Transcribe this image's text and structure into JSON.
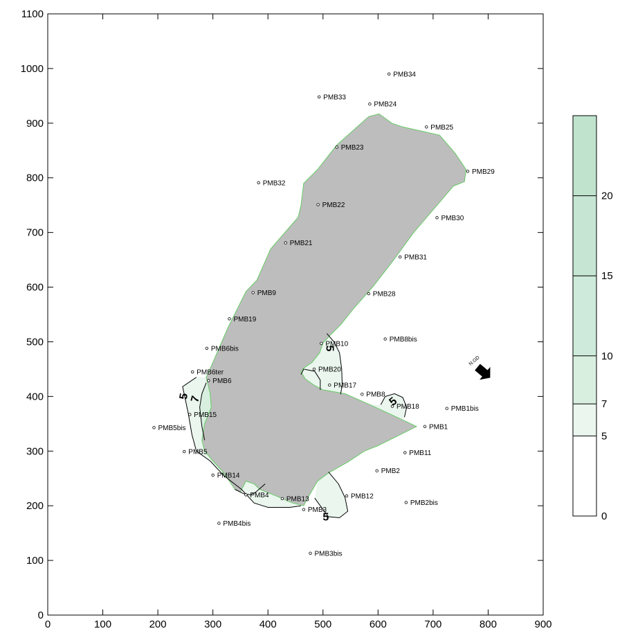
{
  "chart_data": {
    "type": "contour",
    "title": "",
    "xlabel": "",
    "ylabel": "",
    "xlim": [
      0,
      900
    ],
    "ylim": [
      0,
      1100
    ],
    "x_ticks": [
      0,
      100,
      200,
      300,
      400,
      500,
      600,
      700,
      800,
      900
    ],
    "y_ticks": [
      0,
      100,
      200,
      300,
      400,
      500,
      600,
      700,
      800,
      900,
      1000,
      1100
    ],
    "grid": false,
    "north_arrow_label": "N.GD",
    "colors": {
      "pit_fill": "#bdbdbd",
      "pit_edge": "#66cc66",
      "contour_line": "#000000",
      "band_5_7": "#eaf6ee",
      "band_7_10": "#d8efe0",
      "band_10_15": "#cdeadb",
      "band_15_20": "#c6e6d3",
      "band_20_plus": "#bfe3cd"
    },
    "pit_polygon": [
      [
        293,
        446
      ],
      [
        327,
        525
      ],
      [
        360,
        592
      ],
      [
        380,
        613
      ],
      [
        405,
        670
      ],
      [
        455,
        728
      ],
      [
        460,
        750
      ],
      [
        465,
        790
      ],
      [
        490,
        815
      ],
      [
        525,
        860
      ],
      [
        583,
        912
      ],
      [
        602,
        917
      ],
      [
        625,
        900
      ],
      [
        645,
        893
      ],
      [
        690,
        883
      ],
      [
        712,
        878
      ],
      [
        740,
        845
      ],
      [
        760,
        815
      ],
      [
        757,
        793
      ],
      [
        737,
        785
      ],
      [
        665,
        700
      ],
      [
        625,
        645
      ],
      [
        590,
        600
      ],
      [
        555,
        560
      ],
      [
        533,
        532
      ],
      [
        513,
        512
      ],
      [
        500,
        498
      ],
      [
        494,
        480
      ],
      [
        480,
        462
      ],
      [
        465,
        452
      ],
      [
        460,
        445
      ],
      [
        468,
        432
      ],
      [
        485,
        420
      ],
      [
        500,
        412
      ],
      [
        540,
        405
      ],
      [
        585,
        385
      ],
      [
        645,
        357
      ],
      [
        670,
        345
      ],
      [
        600,
        310
      ],
      [
        575,
        300
      ],
      [
        545,
        280
      ],
      [
        510,
        260
      ],
      [
        490,
        245
      ],
      [
        470,
        210
      ],
      [
        465,
        200
      ],
      [
        445,
        205
      ],
      [
        410,
        220
      ],
      [
        385,
        230
      ],
      [
        375,
        240
      ],
      [
        360,
        245
      ],
      [
        350,
        225
      ],
      [
        340,
        230
      ],
      [
        320,
        260
      ],
      [
        300,
        282
      ],
      [
        285,
        300
      ],
      [
        280,
        320
      ],
      [
        285,
        350
      ],
      [
        297,
        380
      ],
      [
        295,
        405
      ],
      [
        288,
        435
      ]
    ],
    "contours": [
      {
        "level": 5,
        "points": [
          [
            270,
            435
          ],
          [
            245,
            418
          ],
          [
            255,
            370
          ],
          [
            262,
            330
          ],
          [
            270,
            300
          ],
          [
            295,
            282
          ],
          [
            320,
            255
          ],
          [
            352,
            230
          ],
          [
            375,
            205
          ],
          [
            400,
            197
          ],
          [
            440,
            197
          ],
          [
            460,
            200
          ]
        ],
        "label": {
          "x": 248,
          "y": 400,
          "rotate": -80
        }
      },
      {
        "level": 7,
        "points": [
          [
            288,
            425
          ],
          [
            280,
            405
          ],
          [
            276,
            380
          ],
          [
            280,
            345
          ],
          [
            285,
            320
          ]
        ],
        "label": {
          "x": 269,
          "y": 395,
          "rotate": -75
        }
      },
      {
        "level": 5,
        "points": [
          [
            340,
            230
          ],
          [
            356,
            222
          ],
          [
            368,
            220
          ],
          [
            378,
            225
          ],
          [
            395,
            240
          ]
        ],
        "label": null
      },
      {
        "level": 5,
        "points": [
          [
            510,
            262
          ],
          [
            528,
            240
          ],
          [
            540,
            215
          ],
          [
            545,
            190
          ],
          [
            530,
            178
          ],
          [
            510,
            180
          ],
          [
            495,
            200
          ],
          [
            485,
            214
          ]
        ],
        "label": {
          "x": 505,
          "y": 178,
          "rotate": 0
        }
      },
      {
        "level": 5,
        "points": [
          [
            507,
            515
          ],
          [
            520,
            500
          ],
          [
            530,
            480
          ],
          [
            534,
            450
          ],
          [
            535,
            420
          ],
          [
            532,
            404
          ]
        ],
        "label": {
          "x": 511,
          "y": 488,
          "rotate": 90
        }
      },
      {
        "level": 5,
        "points": [
          [
            460,
            440
          ],
          [
            465,
            450
          ],
          [
            485,
            446
          ],
          [
            495,
            430
          ],
          [
            495,
            412
          ]
        ],
        "label": null
      },
      {
        "level": 5,
        "points": [
          [
            605,
            385
          ],
          [
            613,
            400
          ],
          [
            630,
            405
          ],
          [
            645,
            398
          ],
          [
            652,
            380
          ],
          [
            648,
            362
          ]
        ],
        "label": {
          "x": 628,
          "y": 390,
          "rotate": -40
        }
      }
    ],
    "shaded_regions": [
      {
        "band": "5-7",
        "points": [
          [
            270,
            435
          ],
          [
            245,
            418
          ],
          [
            255,
            370
          ],
          [
            262,
            330
          ],
          [
            270,
            300
          ],
          [
            295,
            282
          ],
          [
            320,
            255
          ],
          [
            352,
            230
          ],
          [
            375,
            205
          ],
          [
            400,
            197
          ],
          [
            440,
            197
          ],
          [
            460,
            200
          ],
          [
            445,
            205
          ],
          [
            410,
            220
          ],
          [
            385,
            230
          ],
          [
            375,
            240
          ],
          [
            360,
            245
          ],
          [
            350,
            225
          ],
          [
            340,
            230
          ],
          [
            320,
            260
          ],
          [
            300,
            282
          ],
          [
            285,
            300
          ],
          [
            280,
            320
          ],
          [
            285,
            350
          ],
          [
            297,
            380
          ],
          [
            295,
            405
          ],
          [
            288,
            435
          ]
        ]
      },
      {
        "band": "5-7",
        "points": [
          [
            510,
            262
          ],
          [
            528,
            240
          ],
          [
            540,
            215
          ],
          [
            545,
            190
          ],
          [
            530,
            178
          ],
          [
            510,
            180
          ],
          [
            495,
            200
          ],
          [
            485,
            214
          ],
          [
            490,
            245
          ]
        ]
      },
      {
        "band": "5-7",
        "points": [
          [
            500,
            498
          ],
          [
            507,
            515
          ],
          [
            520,
            500
          ],
          [
            530,
            480
          ],
          [
            534,
            450
          ],
          [
            535,
            420
          ],
          [
            532,
            404
          ],
          [
            500,
            412
          ],
          [
            485,
            420
          ],
          [
            468,
            432
          ],
          [
            460,
            445
          ],
          [
            465,
            452
          ],
          [
            480,
            462
          ],
          [
            494,
            480
          ]
        ]
      },
      {
        "band": "5-7",
        "points": [
          [
            585,
            385
          ],
          [
            605,
            385
          ],
          [
            613,
            400
          ],
          [
            630,
            405
          ],
          [
            645,
            398
          ],
          [
            652,
            380
          ],
          [
            648,
            362
          ],
          [
            645,
            357
          ]
        ]
      },
      {
        "band": "7-10",
        "points": [
          [
            288,
            425
          ],
          [
            280,
            405
          ],
          [
            276,
            380
          ],
          [
            280,
            345
          ],
          [
            285,
            320
          ],
          [
            285,
            350
          ],
          [
            297,
            380
          ],
          [
            295,
            405
          ]
        ]
      }
    ],
    "wells": [
      {
        "name": "PMB34",
        "x": 620,
        "y": 990
      },
      {
        "name": "PMB33",
        "x": 493,
        "y": 948
      },
      {
        "name": "PMB24",
        "x": 585,
        "y": 935
      },
      {
        "name": "PMB25",
        "x": 688,
        "y": 893
      },
      {
        "name": "PMB23",
        "x": 525,
        "y": 856
      },
      {
        "name": "PMB29",
        "x": 763,
        "y": 812
      },
      {
        "name": "PMB32",
        "x": 383,
        "y": 791
      },
      {
        "name": "PMB22",
        "x": 491,
        "y": 751
      },
      {
        "name": "PMB30",
        "x": 707,
        "y": 727
      },
      {
        "name": "PMB21",
        "x": 432,
        "y": 681
      },
      {
        "name": "PMB31",
        "x": 640,
        "y": 655
      },
      {
        "name": "PMB9",
        "x": 373,
        "y": 590
      },
      {
        "name": "PMB28",
        "x": 583,
        "y": 588
      },
      {
        "name": "PMB19",
        "x": 330,
        "y": 542
      },
      {
        "name": "PMB8bis",
        "x": 613,
        "y": 505
      },
      {
        "name": "PMB10",
        "x": 497,
        "y": 497
      },
      {
        "name": "PMB6bis",
        "x": 289,
        "y": 488
      },
      {
        "name": "PMB20",
        "x": 484,
        "y": 450
      },
      {
        "name": "PMB6ter",
        "x": 263,
        "y": 445
      },
      {
        "name": "PMB6",
        "x": 292,
        "y": 429
      },
      {
        "name": "PMB17",
        "x": 512,
        "y": 421
      },
      {
        "name": "PMB8",
        "x": 571,
        "y": 404
      },
      {
        "name": "PMB18",
        "x": 626,
        "y": 382
      },
      {
        "name": "PMB1bis",
        "x": 725,
        "y": 378
      },
      {
        "name": "PMB15",
        "x": 258,
        "y": 367
      },
      {
        "name": "PMB1",
        "x": 685,
        "y": 345
      },
      {
        "name": "PMB5bis",
        "x": 193,
        "y": 343
      },
      {
        "name": "PMB5",
        "x": 248,
        "y": 299
      },
      {
        "name": "PMB11",
        "x": 649,
        "y": 297
      },
      {
        "name": "PMB2",
        "x": 598,
        "y": 264
      },
      {
        "name": "PMB14",
        "x": 300,
        "y": 256
      },
      {
        "name": "PMB4",
        "x": 360,
        "y": 220
      },
      {
        "name": "PMB12",
        "x": 543,
        "y": 218
      },
      {
        "name": "PMB13",
        "x": 426,
        "y": 213
      },
      {
        "name": "PMB2bis",
        "x": 651,
        "y": 206
      },
      {
        "name": "PMB3",
        "x": 465,
        "y": 193
      },
      {
        "name": "PMB4bis",
        "x": 311,
        "y": 168
      },
      {
        "name": "PMB3bis",
        "x": 477,
        "y": 113
      }
    ],
    "legend": {
      "placement": "right",
      "levels": [
        0,
        5,
        7,
        10,
        15,
        20
      ],
      "top_value": 25,
      "labels": [
        "0",
        "5",
        "7",
        "10",
        "15",
        "20"
      ]
    }
  }
}
